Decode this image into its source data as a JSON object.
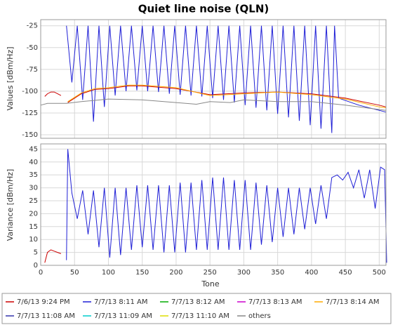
{
  "chart_data": [
    {
      "type": "line",
      "title": "Quiet line noise (QLN)",
      "ylabel": "Values [dBm/Hz]",
      "ylim": [
        -154,
        -18
      ],
      "yticks": [
        -25,
        -50,
        -75,
        -100,
        -125,
        -150
      ],
      "grid": true,
      "series": [
        {
          "name": "7/6/13 9:24 PM",
          "color": "#cc0000",
          "x": [
            6,
            10,
            15,
            20,
            25,
            30,
            35,
            40,
            60,
            80,
            100,
            130,
            150,
            200,
            250,
            300,
            350,
            400,
            450,
            500,
            510
          ],
          "values": [
            -106,
            -103,
            -101,
            -101,
            -103,
            -105,
            null,
            -113,
            -103,
            -98,
            -97,
            -94,
            -94,
            -97,
            -104,
            -102,
            -101,
            -103,
            -108,
            -116,
            -118
          ]
        },
        {
          "name": "7/7/13 8:11 AM",
          "color": "#1f1fd6",
          "x": [
            38,
            46,
            54,
            62,
            70,
            78,
            86,
            94,
            102,
            110,
            118,
            126,
            134,
            142,
            150,
            158,
            166,
            174,
            182,
            190,
            198,
            206,
            214,
            222,
            230,
            238,
            246,
            254,
            262,
            270,
            278,
            286,
            294,
            302,
            310,
            318,
            326,
            334,
            342,
            350,
            358,
            366,
            374,
            382,
            390,
            398,
            406,
            414,
            422,
            430,
            434,
            440,
            470,
            510
          ],
          "values": [
            -25,
            -90,
            -25,
            -110,
            -25,
            -135,
            -25,
            -118,
            -25,
            -105,
            -25,
            -100,
            -25,
            -99,
            -25,
            -100,
            -25,
            -101,
            -25,
            -103,
            -25,
            -104,
            -25,
            -105,
            -25,
            -106,
            -25,
            -108,
            -25,
            -110,
            -25,
            -113,
            -25,
            -116,
            -25,
            -119,
            -25,
            -122,
            -25,
            -126,
            -25,
            -130,
            -25,
            -134,
            -25,
            -139,
            -25,
            -143,
            -25,
            -148,
            -25,
            -108,
            -116,
            -124
          ]
        },
        {
          "name": "7/7/13 8:12 AM",
          "color": "#00aa00"
        },
        {
          "name": "7/7/13 8:13 AM",
          "color": "#cc00cc"
        },
        {
          "name": "7/7/13 8:14 AM",
          "color": "#ffaa00",
          "x": [
            40,
            60,
            80,
            100,
            130,
            150,
            200,
            250,
            300,
            350,
            400,
            450,
            500,
            510
          ],
          "values": [
            -112,
            -102,
            -97,
            -96,
            -93,
            -93,
            -96,
            -105,
            -103,
            -101,
            -104,
            -109,
            -118,
            -119
          ]
        },
        {
          "name": "7/7/13 11:08 AM",
          "color": "#3333aa"
        },
        {
          "name": "7/7/13 11:09 AM",
          "color": "#00cccc"
        },
        {
          "name": "7/7/13 11:10 AM",
          "color": "#dddd00"
        },
        {
          "name": "others",
          "color": "#888888",
          "x": [
            0,
            10,
            30,
            38,
            60,
            100,
            150,
            200,
            230,
            250,
            280,
            300,
            350,
            400,
            450,
            510
          ],
          "values": [
            -116,
            -114,
            -114,
            -114,
            -112,
            -109,
            -110,
            -113,
            -115,
            -112,
            -113,
            -110,
            -112,
            -112,
            -116,
            -122
          ]
        }
      ]
    },
    {
      "type": "line",
      "ylabel": "Variance [dBm/Hz]",
      "xlabel": "Tone",
      "xlim": [
        0,
        510
      ],
      "xticks": [
        0,
        50,
        100,
        150,
        200,
        250,
        300,
        350,
        400,
        450,
        500
      ],
      "ylim": [
        0,
        47
      ],
      "yticks": [
        0,
        5,
        10,
        15,
        20,
        25,
        30,
        35,
        40,
        45
      ],
      "grid": true,
      "series": [
        {
          "color": "#cc0000",
          "x": [
            6,
            10,
            15,
            20,
            25,
            30
          ],
          "values": [
            1,
            5,
            6,
            5.5,
            5,
            4.5
          ]
        },
        {
          "color": "#1f1fd6",
          "x": [
            38,
            40,
            46,
            54,
            62,
            70,
            78,
            86,
            94,
            102,
            110,
            118,
            126,
            134,
            142,
            150,
            158,
            166,
            174,
            182,
            190,
            198,
            206,
            214,
            222,
            230,
            238,
            246,
            254,
            262,
            270,
            278,
            286,
            294,
            302,
            310,
            318,
            326,
            334,
            342,
            350,
            358,
            366,
            374,
            382,
            390,
            398,
            406,
            414,
            422,
            430,
            438,
            446,
            454,
            462,
            470,
            478,
            486,
            494,
            502,
            508,
            511
          ],
          "values": [
            2,
            45,
            28,
            18,
            29,
            12,
            29,
            7,
            30,
            3,
            30,
            4,
            30,
            6,
            31,
            7,
            31,
            6,
            31,
            5,
            31,
            5,
            32,
            5,
            32,
            6,
            33,
            6,
            34,
            6,
            34,
            6,
            33,
            6,
            33,
            6,
            32,
            8,
            31,
            9,
            30,
            11,
            30,
            12,
            30,
            14,
            30,
            16,
            31,
            18,
            34,
            35,
            33,
            36,
            30,
            37,
            26,
            37,
            22,
            38,
            37,
            1
          ]
        }
      ]
    }
  ]
}
